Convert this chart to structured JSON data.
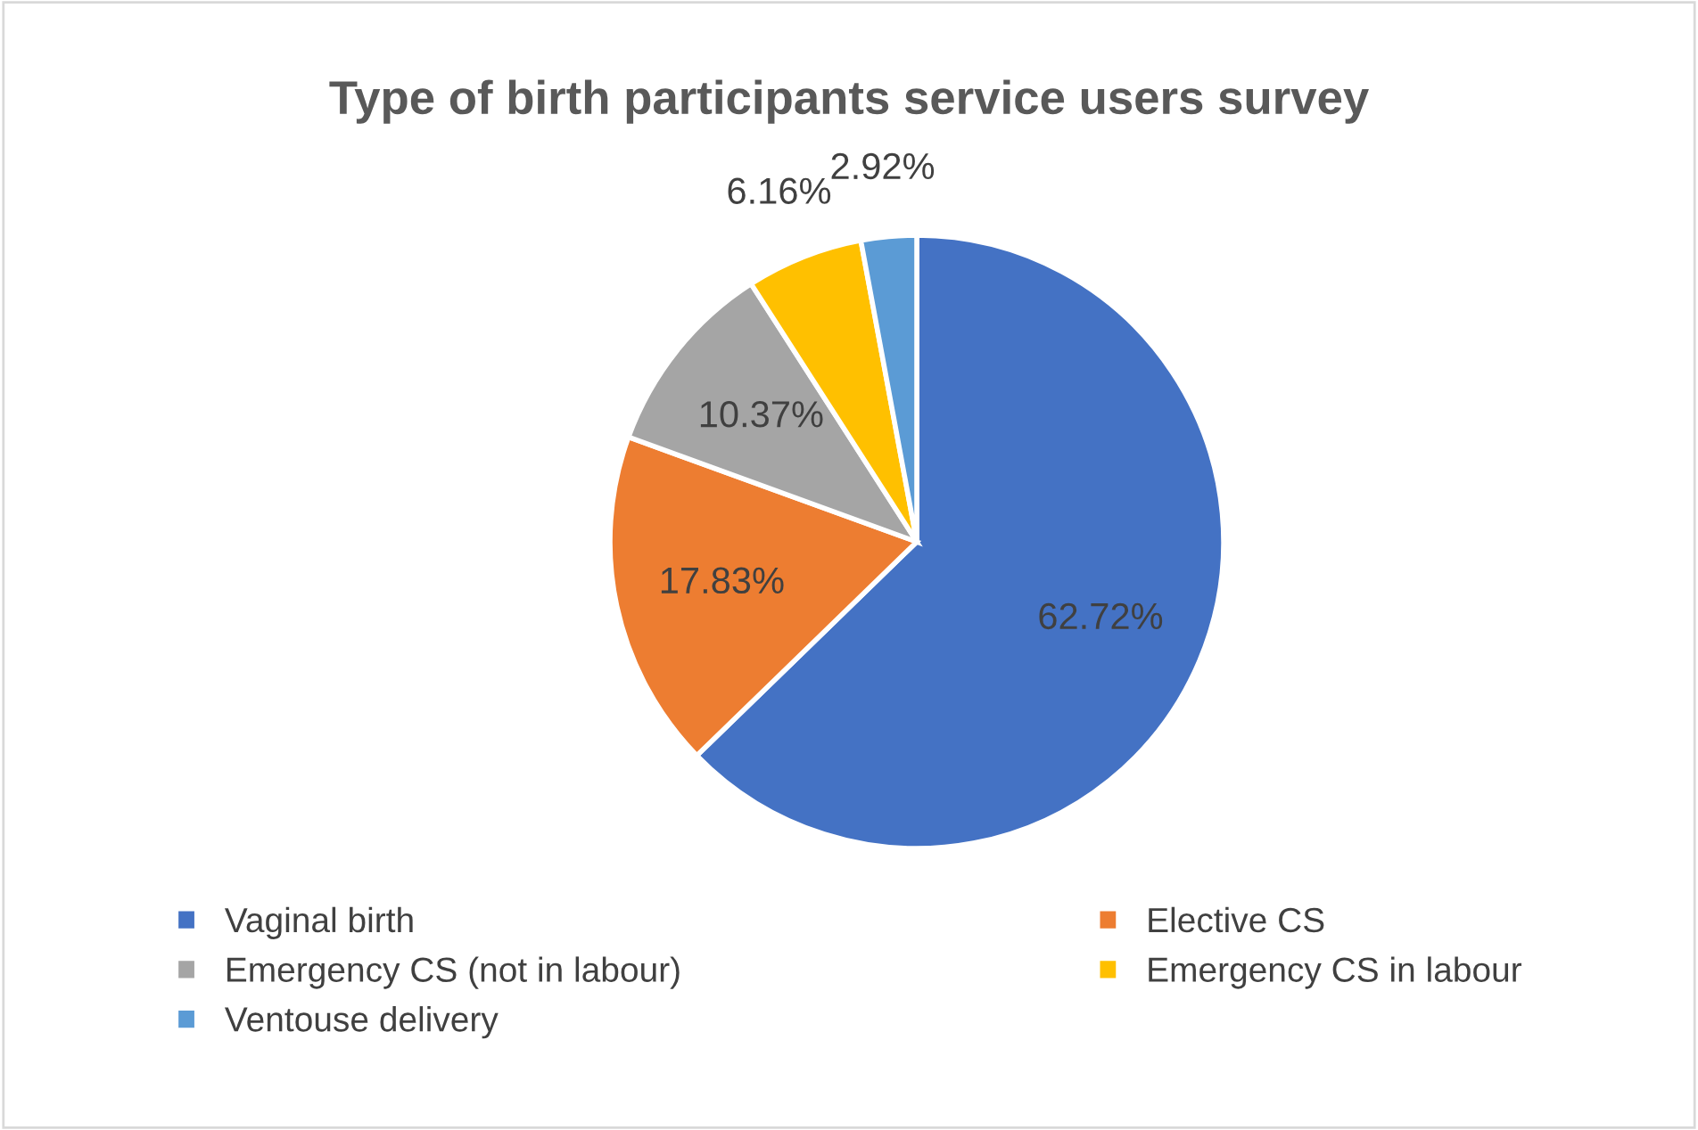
{
  "chart_data": {
    "type": "pie",
    "title": "Type of birth participants service users survey",
    "categories": [
      "Vaginal birth",
      "Elective CS",
      "Emergency CS (not in labour)",
      "Emergency CS in labour",
      "Ventouse delivery"
    ],
    "values": [
      62.72,
      17.83,
      10.37,
      6.16,
      2.92
    ],
    "colors": [
      "#4472c4",
      "#ed7d31",
      "#a5a5a5",
      "#ffc000",
      "#5b9bd5"
    ],
    "value_labels": [
      "62.72%",
      "17.83%",
      "10.37%",
      "6.16%",
      "2.92%"
    ],
    "legend": "bottom"
  }
}
